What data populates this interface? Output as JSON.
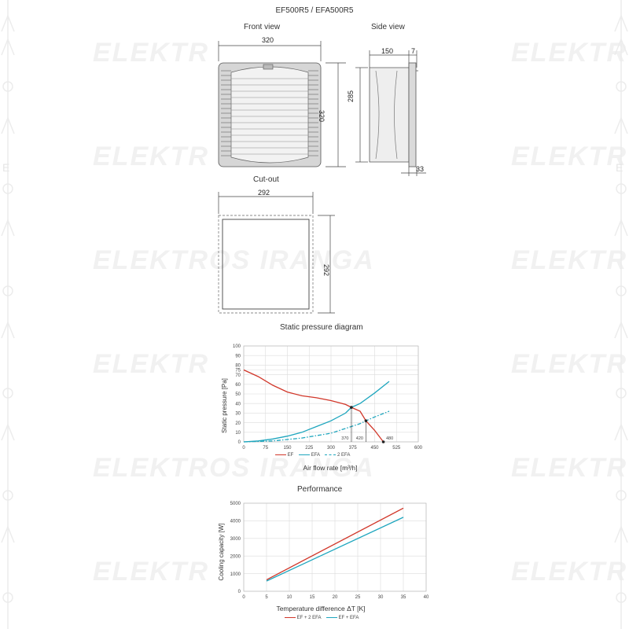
{
  "doc_title": "EF500R5 / EFA500R5",
  "watermark": {
    "text_full": "ELEKTROS IRANGA",
    "text_short": "ELEKTR",
    "side_glyph": "E"
  },
  "front_view": {
    "title": "Front view",
    "width_label": "320",
    "height_label": "320"
  },
  "side_view": {
    "title": "Side view",
    "depth_label": "150",
    "flange_label": "7",
    "height_label": "285",
    "bottom_label": "33"
  },
  "cutout": {
    "title": "Cut-out",
    "width_label": "292",
    "height_label": "292"
  },
  "static_pressure": {
    "title": "Static pressure diagram",
    "ylabel": "Static pressure  [Pa]",
    "xlabel": "Air flow rate [m³/h]",
    "markers": [
      "370",
      "420",
      "480"
    ],
    "legend": [
      "EF",
      "EFA",
      "2 EFA"
    ]
  },
  "performance": {
    "title": "Performance",
    "ylabel": "Cooling capacity  [W]",
    "xlabel": "Temperature difference ΔT [K]",
    "legend": [
      "EF + 2 EFA",
      "EF + EFA"
    ]
  },
  "colors": {
    "red": "#d1372a",
    "teal": "#1ea6be",
    "grid": "#dcdcdc"
  },
  "chart_data": [
    {
      "type": "line",
      "title": "Static pressure diagram",
      "xlabel": "Air flow rate [m³/h]",
      "ylabel": "Static pressure  [Pa]",
      "xlim": [
        0,
        600
      ],
      "ylim": [
        0,
        100
      ],
      "xticks": [
        0,
        75,
        150,
        225,
        300,
        375,
        450,
        525,
        600
      ],
      "yticks": [
        0,
        10,
        20,
        30,
        40,
        50,
        60,
        70,
        75,
        80,
        90,
        100
      ],
      "grid": true,
      "legend_position": "bottom",
      "series": [
        {
          "name": "EF",
          "color": "#d1372a",
          "style": "solid",
          "x": [
            0,
            50,
            100,
            150,
            200,
            250,
            300,
            350,
            370,
            400,
            420,
            450,
            480
          ],
          "y": [
            75,
            68,
            59,
            52,
            48,
            46,
            43,
            39,
            36,
            32,
            22,
            12,
            0
          ]
        },
        {
          "name": "EFA",
          "color": "#1ea6be",
          "style": "solid",
          "x": [
            0,
            50,
            100,
            150,
            200,
            250,
            300,
            350,
            370,
            400,
            450,
            500
          ],
          "y": [
            0,
            1,
            3,
            6,
            10,
            16,
            22,
            30,
            36,
            40,
            51,
            63
          ]
        },
        {
          "name": "2 EFA",
          "color": "#1ea6be",
          "style": "dashdot",
          "x": [
            0,
            100,
            200,
            300,
            400,
            420,
            450,
            500
          ],
          "y": [
            0,
            1,
            4,
            9,
            19,
            22,
            26,
            32
          ]
        }
      ],
      "points": [
        {
          "x": 370,
          "y": 36,
          "label": "370"
        },
        {
          "x": 420,
          "y": 22,
          "label": "420"
        },
        {
          "x": 480,
          "y": 0,
          "label": "480"
        }
      ]
    },
    {
      "type": "line",
      "title": "Performance",
      "xlabel": "Temperature difference ΔT [K]",
      "ylabel": "Cooling capacity  [W]",
      "xlim": [
        0,
        40
      ],
      "ylim": [
        0,
        5000
      ],
      "xticks": [
        0,
        5,
        10,
        15,
        20,
        25,
        30,
        35,
        40
      ],
      "yticks": [
        0,
        1000,
        2000,
        3000,
        4000,
        5000
      ],
      "grid": true,
      "legend_position": "bottom",
      "series": [
        {
          "name": "EF + 2 EFA",
          "color": "#d1372a",
          "x": [
            5,
            35
          ],
          "y": [
            650,
            4720
          ]
        },
        {
          "name": "EF + EFA",
          "color": "#1ea6be",
          "x": [
            5,
            35
          ],
          "y": [
            580,
            4200
          ]
        }
      ]
    }
  ]
}
